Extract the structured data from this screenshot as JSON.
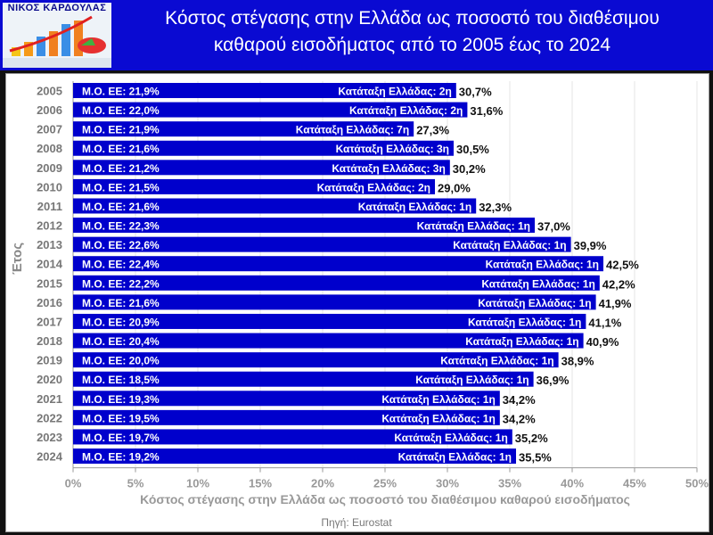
{
  "header": {
    "logo_text": "ΝΙΚΟΣ ΚΑΡΔΟΥΛΑΣ",
    "title_line1": "Κόστος στέγασης στην Ελλάδα ως ποσοστό του διαθέσιμου",
    "title_line2": "καθαρού εισοδήματος από το 2005 έως το 2024"
  },
  "colors": {
    "bar": "#0000cc",
    "header": "#0a0ad2"
  },
  "chart_data": {
    "type": "bar",
    "orientation": "horizontal",
    "categories": [
      "2005",
      "2006",
      "2007",
      "2008",
      "2009",
      "2010",
      "2011",
      "2012",
      "2013",
      "2014",
      "2015",
      "2016",
      "2017",
      "2018",
      "2019",
      "2020",
      "2021",
      "2022",
      "2023",
      "2024"
    ],
    "values": [
      30.7,
      31.6,
      27.3,
      30.5,
      30.2,
      29.0,
      32.3,
      37.0,
      39.9,
      42.5,
      42.2,
      41.9,
      41.1,
      40.9,
      38.9,
      36.9,
      34.2,
      34.2,
      35.2,
      35.5
    ],
    "value_labels": [
      "30,7%",
      "31,6%",
      "27,3%",
      "30,5%",
      "30,2%",
      "29,0%",
      "32,3%",
      "37,0%",
      "39,9%",
      "42,5%",
      "42,2%",
      "41,9%",
      "41,1%",
      "40,9%",
      "38,9%",
      "36,9%",
      "34,2%",
      "34,2%",
      "35,2%",
      "35,5%"
    ],
    "eu_avg_labels": [
      "Μ.Ο. ΕΕ: 21,9%",
      "Μ.Ο. ΕΕ: 22,0%",
      "Μ.Ο. ΕΕ: 21,9%",
      "Μ.Ο. ΕΕ: 21,6%",
      "Μ.Ο. ΕΕ: 21,2%",
      "Μ.Ο. ΕΕ: 21,5%",
      "Μ.Ο. ΕΕ: 21,6%",
      "Μ.Ο. ΕΕ: 22,3%",
      "Μ.Ο. ΕΕ: 22,6%",
      "Μ.Ο. ΕΕ: 22,4%",
      "Μ.Ο. ΕΕ: 22,2%",
      "Μ.Ο. ΕΕ: 21,6%",
      "Μ.Ο. ΕΕ: 20,9%",
      "Μ.Ο. ΕΕ: 20,4%",
      "Μ.Ο. ΕΕ: 20,0%",
      "Μ.Ο. ΕΕ: 18,5%",
      "Μ.Ο. ΕΕ: 19,3%",
      "Μ.Ο. ΕΕ: 19,5%",
      "Μ.Ο. ΕΕ: 19,7%",
      "Μ.Ο. ΕΕ: 19,2%"
    ],
    "rank_labels": [
      "Κατάταξη Ελλάδας: 2η",
      "Κατάταξη Ελλάδας: 2η",
      "Κατάταξη Ελλάδας: 7η",
      "Κατάταξη Ελλάδας: 3η",
      "Κατάταξη Ελλάδας: 3η",
      "Κατάταξη Ελλάδας: 2η",
      "Κατάταξη Ελλάδας: 1η",
      "Κατάταξη Ελλάδας: 1η",
      "Κατάταξη Ελλάδας: 1η",
      "Κατάταξη Ελλάδας: 1η",
      "Κατάταξη Ελλάδας: 1η",
      "Κατάταξη Ελλάδας: 1η",
      "Κατάταξη Ελλάδας: 1η",
      "Κατάταξη Ελλάδας: 1η",
      "Κατάταξη Ελλάδας: 1η",
      "Κατάταξη Ελλάδας: 1η",
      "Κατάταξη Ελλάδας: 1η",
      "Κατάταξη Ελλάδας: 1η",
      "Κατάταξη Ελλάδας: 1η",
      "Κατάταξη Ελλάδας: 1η"
    ],
    "xlim": [
      0,
      50
    ],
    "xticks": [
      "0%",
      "5%",
      "10%",
      "15%",
      "20%",
      "25%",
      "30%",
      "35%",
      "40%",
      "45%",
      "50%"
    ],
    "xlabel": "Κόστος στέγασης στην Ελλάδα ως ποσοστό του διαθέσιμου καθαρού εισοδήματος",
    "ylabel": "Έτος",
    "grid": true,
    "source": "Πηγή: Eurostat"
  }
}
